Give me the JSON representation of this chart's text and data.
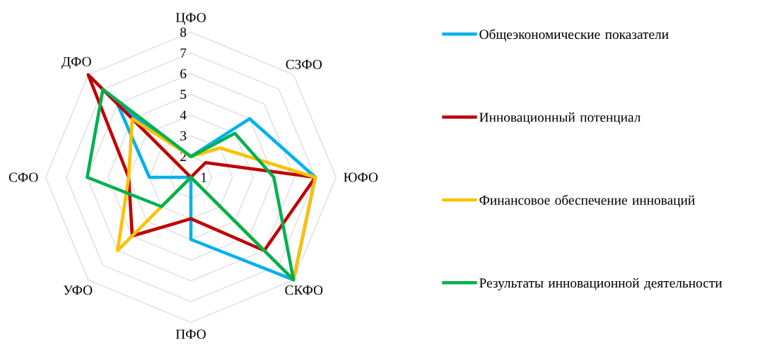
{
  "chart_data": {
    "type": "radar",
    "categories": [
      "ЦФО",
      "СЗФО",
      "ЮФО",
      "СКФО",
      "ПФО",
      "УФО",
      "СФО",
      "ДФО"
    ],
    "series": [
      {
        "name": "Общеэкономические показатели",
        "color": "#00b0f0",
        "values": [
          2,
          5,
          7,
          8,
          4,
          1,
          3,
          6
        ]
      },
      {
        "name": "Инновационный потенциал",
        "color": "#c00000",
        "values": [
          1,
          2,
          7,
          6,
          3,
          5,
          4,
          8
        ]
      },
      {
        "name": "Финансовое обеспечение инноваций",
        "color": "#ffc000",
        "values": [
          2,
          3,
          7,
          8,
          1,
          6,
          4,
          5
        ]
      },
      {
        "name": "Результаты инновационной деятельности",
        "color": "#00b050",
        "values": [
          2,
          4,
          5,
          8,
          1,
          3,
          6,
          7
        ]
      }
    ],
    "ylim": [
      1,
      8
    ],
    "yticks": [
      1,
      2,
      3,
      4,
      5,
      6,
      7,
      8
    ],
    "grid": true,
    "legend": "right"
  }
}
